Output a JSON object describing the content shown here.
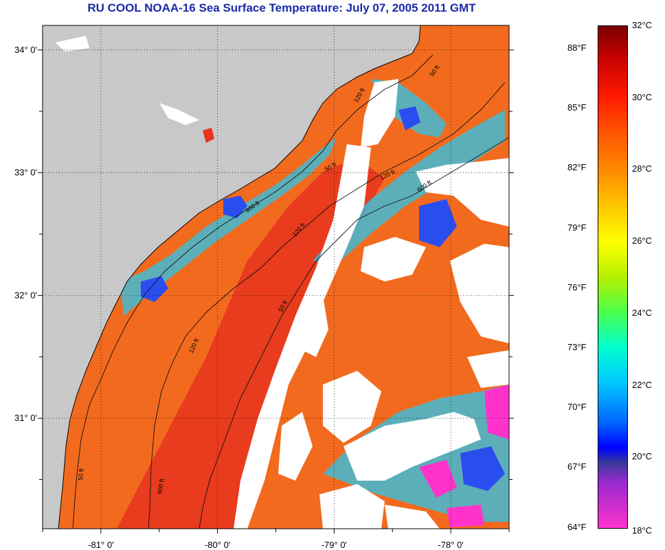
{
  "title": "RU COOL  NOAA-16  Sea Surface Temperature:  July 07, 2005 2011 GMT",
  "map": {
    "lon_range": [
      -81.5,
      -77.5
    ],
    "lat_range": [
      30.1,
      34.2
    ],
    "lat_ticks": [
      {
        "value": 34,
        "label": "34° 0'"
      },
      {
        "value": 33,
        "label": "33° 0'"
      },
      {
        "value": 32,
        "label": "32° 0'"
      },
      {
        "value": 31,
        "label": "31° 0'"
      }
    ],
    "lon_ticks": [
      {
        "value": -81,
        "label": "-81° 0'"
      },
      {
        "value": -80,
        "label": "-80° 0'"
      },
      {
        "value": -79,
        "label": "-79° 0'"
      },
      {
        "value": -78,
        "label": "-78° 0'"
      }
    ],
    "isobath_labels": [
      "50 ft",
      "120 ft",
      "600 ft",
      "50 ft",
      "120 ft",
      "600 ft",
      "120 ft",
      "50 ft",
      "120 ft",
      "600 ft",
      "50 ft"
    ],
    "colors": {
      "land": "#c8c8c8",
      "cloud": "#ffffff",
      "warm_water": "#f26a1e",
      "hot_water": "#e8321e",
      "cool_water": "#36c0e0",
      "cold_water": "#2a4df0",
      "coldest_water": "#ff33cc"
    }
  },
  "colorbar": {
    "celsius": [
      {
        "value": 32,
        "label": "32°C"
      },
      {
        "value": 30,
        "label": "30°C"
      },
      {
        "value": 28,
        "label": "28°C"
      },
      {
        "value": 26,
        "label": "26°C"
      },
      {
        "value": 24,
        "label": "24°C"
      },
      {
        "value": 22,
        "label": "22°C"
      },
      {
        "value": 20,
        "label": "20°C"
      },
      {
        "value": 18,
        "label": "18°C"
      }
    ],
    "fahrenheit": [
      {
        "value": 88,
        "label": "88°F"
      },
      {
        "value": 85,
        "label": "85°F"
      },
      {
        "value": 82,
        "label": "82°F"
      },
      {
        "value": 79,
        "label": "79°F"
      },
      {
        "value": 76,
        "label": "76°F"
      },
      {
        "value": 73,
        "label": "73°F"
      },
      {
        "value": 70,
        "label": "70°F"
      },
      {
        "value": 67,
        "label": "67°F"
      },
      {
        "value": 64,
        "label": "64°F"
      }
    ]
  }
}
